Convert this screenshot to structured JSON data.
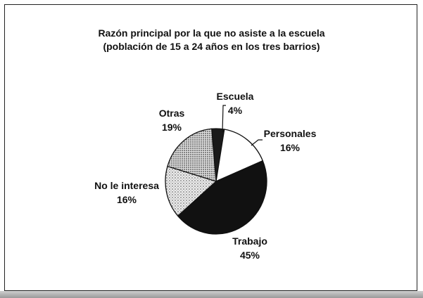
{
  "chart_data": {
    "type": "pie",
    "title": "Razón principal por la que no asiste a la escuela",
    "subtitle": "(población de 15 a 24 años en los tres barrios)",
    "slices": [
      {
        "label": "Escuela",
        "value": 4,
        "value_label": "4%",
        "fill": "#1a1a1a"
      },
      {
        "label": "Personales",
        "value": 16,
        "value_label": "16%",
        "fill": "#ffffff"
      },
      {
        "label": "Trabajo",
        "value": 45,
        "value_label": "45%",
        "fill": "#111111"
      },
      {
        "label": "No le interesa",
        "value": 16,
        "value_label": "16%",
        "fill": "url(#dots-light)"
      },
      {
        "label": "Otras",
        "value": 19,
        "value_label": "19%",
        "fill": "url(#dots-dense)"
      }
    ]
  }
}
